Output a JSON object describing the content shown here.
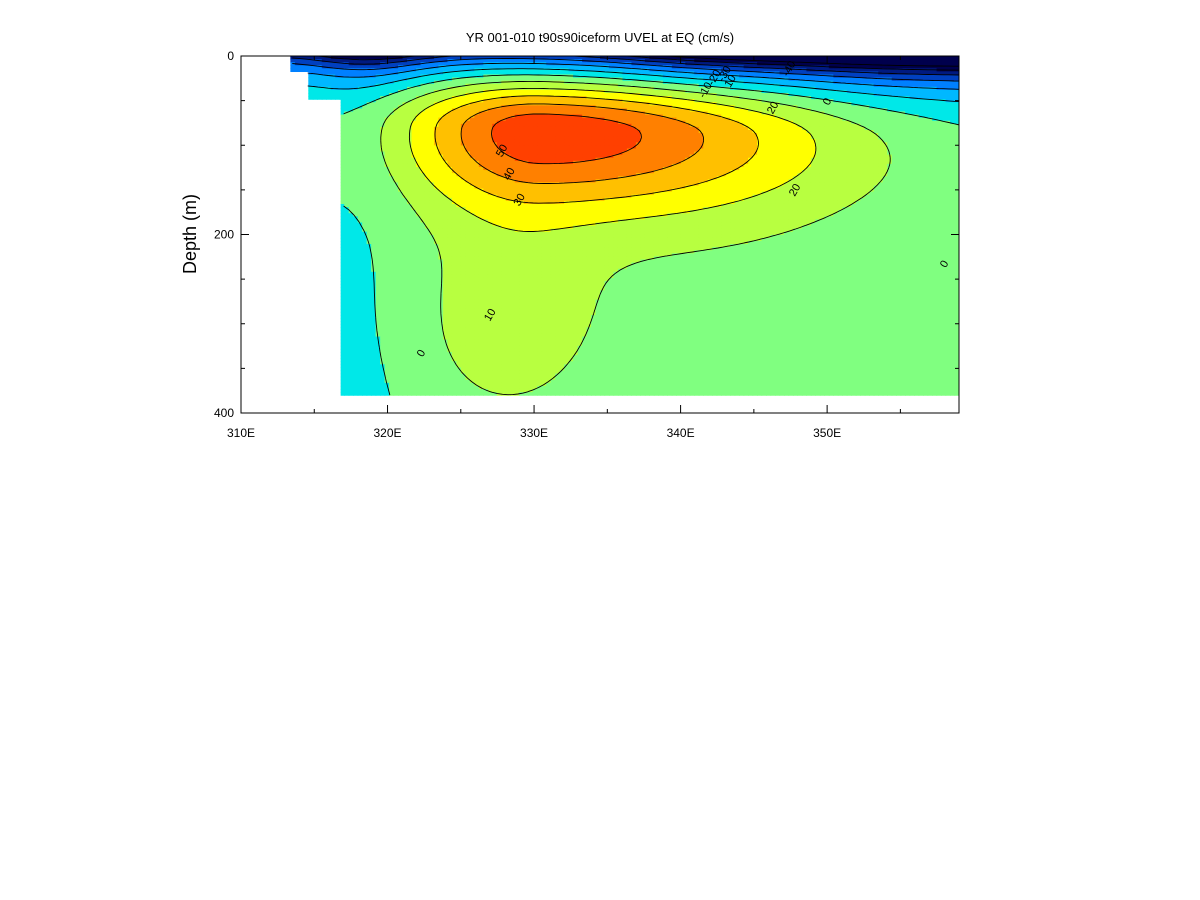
{
  "chart_data": {
    "type": "heatmap",
    "title": "YR 001-010 t90s90iceform UVEL at EQ (cm/s)",
    "xlabel": "",
    "ylabel": "Depth (m)",
    "xlim": [
      310,
      359
    ],
    "ylim": [
      400,
      0
    ],
    "x_ticks": [
      {
        "value": 310,
        "label": "310E"
      },
      {
        "value": 320,
        "label": "320E"
      },
      {
        "value": 330,
        "label": "330E"
      },
      {
        "value": 340,
        "label": "340E"
      },
      {
        "value": 350,
        "label": "350E"
      }
    ],
    "y_ticks": [
      {
        "value": 0,
        "label": "0"
      },
      {
        "value": 200,
        "label": "200"
      },
      {
        "value": 400,
        "label": "400"
      }
    ],
    "y_minor_ticks": [
      50,
      100,
      150,
      250,
      300,
      350
    ],
    "x_minor_ticks": [
      315,
      325,
      335,
      345,
      355
    ],
    "grid": false,
    "contour_interval": 10,
    "core": {
      "value": 50,
      "lon": 330.5,
      "depth": 82
    },
    "west_boundary": [
      {
        "lon": 313.3,
        "depth": 0
      },
      {
        "lon": 313.3,
        "depth": 18
      },
      {
        "lon": 314.5,
        "depth": 18
      },
      {
        "lon": 314.5,
        "depth": 50
      },
      {
        "lon": 316.8,
        "depth": 50
      },
      {
        "lon": 316.8,
        "depth": 380
      }
    ],
    "bottom_depth": 380,
    "contour_labels": [
      {
        "value": "50",
        "lon": 328.0,
        "depth": 108
      },
      {
        "value": "40",
        "lon": 328.5,
        "depth": 134
      },
      {
        "value": "30",
        "lon": 329.2,
        "depth": 163
      },
      {
        "value": "20",
        "lon": 346.5,
        "depth": 60
      },
      {
        "value": "20",
        "lon": 348.0,
        "depth": 152
      },
      {
        "value": "10",
        "lon": 327.2,
        "depth": 292
      },
      {
        "value": "0",
        "lon": 322.5,
        "depth": 335
      },
      {
        "value": "0",
        "lon": 350.2,
        "depth": 53
      },
      {
        "value": "0",
        "lon": 358.2,
        "depth": 235
      },
      {
        "value": "-10",
        "lon": 341.9,
        "depth": 40
      },
      {
        "value": "-20",
        "lon": 342.5,
        "depth": 26
      },
      {
        "value": "-30",
        "lon": 343.2,
        "depth": 22
      },
      {
        "value": "-40",
        "lon": 347.6,
        "depth": 16
      },
      {
        "value": "10",
        "lon": 343.6,
        "depth": 30
      }
    ],
    "colorscale": [
      {
        "value": -60,
        "color": "#00004d"
      },
      {
        "value": -50,
        "color": "#001a80"
      },
      {
        "value": -40,
        "color": "#0040c0"
      },
      {
        "value": -30,
        "color": "#0080ff"
      },
      {
        "value": -20,
        "color": "#00b8ff"
      },
      {
        "value": -10,
        "color": "#00e8e8"
      },
      {
        "value": 0,
        "color": "#80ff80"
      },
      {
        "value": 10,
        "color": "#b8ff40"
      },
      {
        "value": 20,
        "color": "#ffff00"
      },
      {
        "value": 30,
        "color": "#ffc000"
      },
      {
        "value": 40,
        "color": "#ff8000"
      },
      {
        "value": 50,
        "color": "#ff4000"
      }
    ]
  }
}
